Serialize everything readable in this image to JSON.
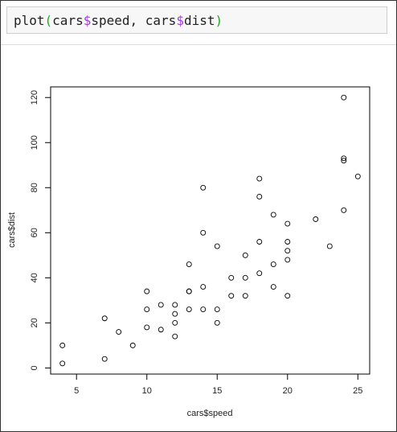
{
  "code_tokens": [
    "plot",
    "(",
    "cars",
    "$",
    "speed, cars",
    "$",
    "dist",
    ")"
  ],
  "code_token_colors": [
    "#222222",
    "#22a822",
    "#222222",
    "#a33ee0",
    "#222222",
    "#a33ee0",
    "#222222",
    "#22a822"
  ],
  "chart_data": {
    "type": "scatter",
    "xlabel": "cars$speed",
    "ylabel": "cars$dist",
    "x": [
      4,
      4,
      7,
      7,
      8,
      9,
      10,
      10,
      10,
      11,
      11,
      12,
      12,
      12,
      12,
      13,
      13,
      13,
      13,
      14,
      14,
      14,
      14,
      15,
      15,
      15,
      16,
      16,
      17,
      17,
      17,
      18,
      18,
      18,
      18,
      19,
      19,
      19,
      20,
      20,
      20,
      20,
      20,
      22,
      23,
      24,
      24,
      24,
      24,
      25
    ],
    "y": [
      2,
      10,
      4,
      22,
      16,
      10,
      18,
      26,
      34,
      17,
      28,
      14,
      20,
      24,
      28,
      26,
      34,
      34,
      46,
      26,
      36,
      60,
      80,
      20,
      26,
      54,
      32,
      40,
      32,
      40,
      50,
      42,
      56,
      76,
      84,
      36,
      46,
      68,
      32,
      48,
      52,
      56,
      64,
      66,
      54,
      70,
      92,
      93,
      120,
      85
    ],
    "xlim": [
      3.16,
      25.84
    ],
    "ylim": [
      -2.72,
      124.72
    ],
    "xticks": [
      5,
      10,
      15,
      20,
      25
    ],
    "yticks": [
      0,
      20,
      40,
      60,
      80,
      100,
      120
    ],
    "color": "#000000"
  }
}
